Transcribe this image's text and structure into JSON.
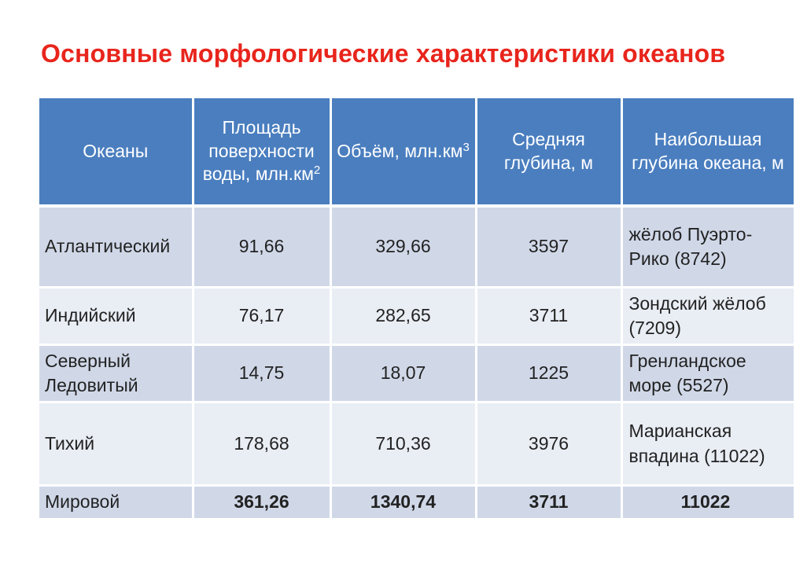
{
  "title": "Основные морфологические характеристики океанов",
  "colors": {
    "title": "#e8251c",
    "header_bg": "#4a7ebf",
    "row_odd": "#d0d8e8",
    "row_even": "#e9edf4"
  },
  "table": {
    "headers": {
      "ocean": "Океаны",
      "area": "Площадь поверхности воды, млн.км",
      "area_sup": "2",
      "volume": "Объём, млн.км",
      "volume_sup": "3",
      "avg_depth": "Средняя глубина, м",
      "max_depth": "Наибольшая глубина океана, м"
    },
    "rows": [
      {
        "ocean": "Атлантический",
        "area": "91,66",
        "volume": "329,66",
        "avg_depth": "3597",
        "max_depth": "жёлоб Пуэрто-Рико (8742)"
      },
      {
        "ocean": "Индийский",
        "area": "76,17",
        "volume": "282,65",
        "avg_depth": "3711",
        "max_depth": "Зондский жёлоб (7209)"
      },
      {
        "ocean": "Северный Ледовитый",
        "area": "14,75",
        "volume": "18,07",
        "avg_depth": "1225",
        "max_depth": "Гренландское море (5527)"
      },
      {
        "ocean": "Тихий",
        "area": "178,68",
        "volume": "710,36",
        "avg_depth": "3976",
        "max_depth": "Марианская впадина (11022)"
      },
      {
        "ocean": "Мировой",
        "area": "361,26",
        "volume": "1340,74",
        "avg_depth": "3711",
        "max_depth": "11022"
      }
    ]
  }
}
